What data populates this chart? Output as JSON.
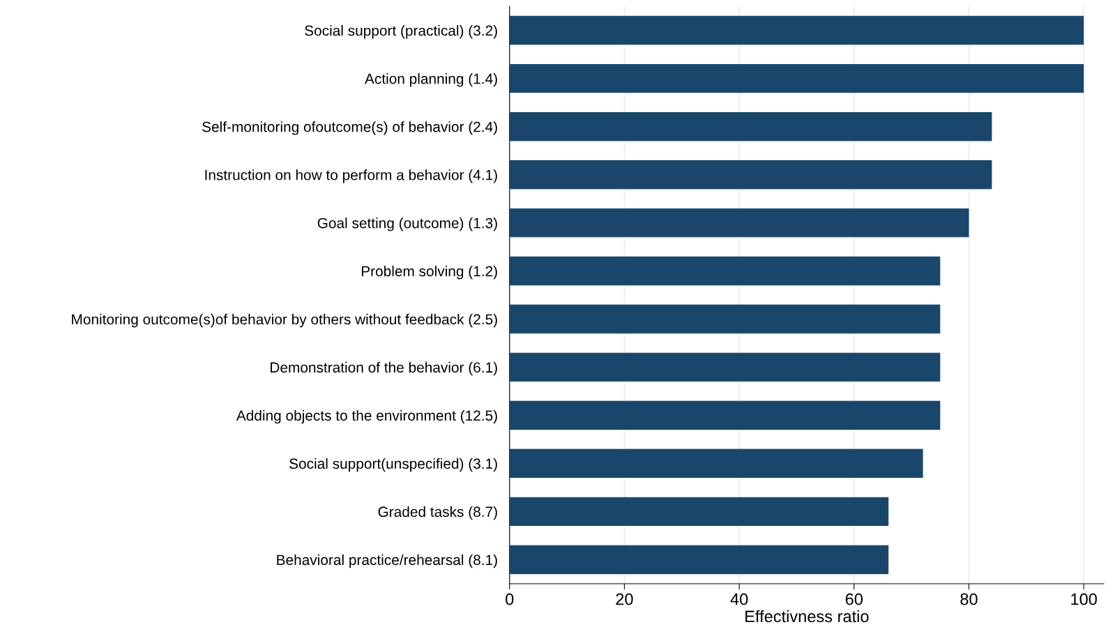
{
  "chart_data": {
    "type": "bar",
    "orientation": "horizontal",
    "xlabel": "Effectivness ratio",
    "categories": [
      "Social support (practical) (3.2)",
      "Action planning (1.4)",
      "Self-monitoring ofoutcome(s) of behavior (2.4)",
      "Instruction on how to perform a behavior (4.1)",
      "Goal setting (outcome) (1.3)",
      "Problem solving (1.2)",
      "Monitoring outcome(s)of behavior by others without feedback (2.5)",
      "Demonstration of the behavior (6.1)",
      "Adding objects to the environment (12.5)",
      "Social support(unspecified) (3.1)",
      "Graded tasks (8.7)",
      "Behavioral practice/rehearsal (8.1)"
    ],
    "values": [
      100,
      100,
      84,
      84,
      80,
      75,
      75,
      75,
      75,
      72,
      66,
      66
    ],
    "color": "#1b466b",
    "xlim": [
      0,
      103.5
    ],
    "xticks": [
      0,
      20,
      40,
      60,
      80,
      100
    ],
    "grid": "x"
  }
}
